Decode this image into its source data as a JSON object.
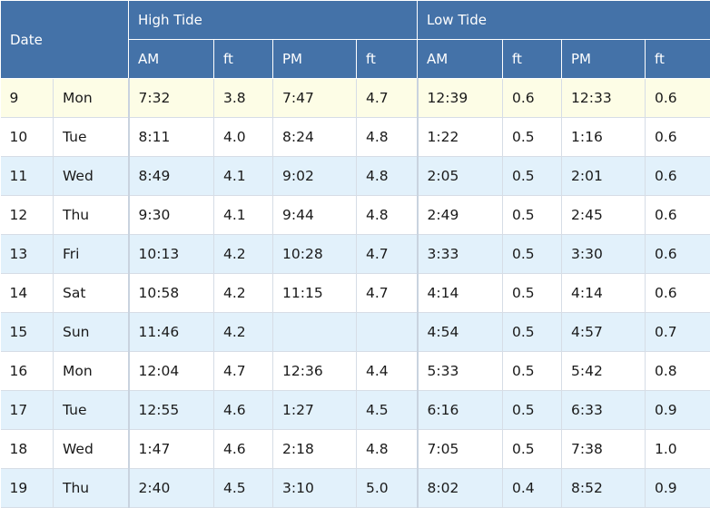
{
  "headers": {
    "date": "Date",
    "high_tide": "High Tide",
    "low_tide": "Low Tide",
    "sub": [
      "AM",
      "ft",
      "PM",
      "ft",
      "AM",
      "ft",
      "PM",
      "ft"
    ]
  },
  "rows": [
    {
      "day": "9",
      "weekday": "Mon",
      "h_am": "7:32",
      "h_am_ft": "3.8",
      "h_pm": "7:47",
      "h_pm_ft": "4.7",
      "l_am": "12:39",
      "l_am_ft": "0.6",
      "l_pm": "12:33",
      "l_pm_ft": "0.6"
    },
    {
      "day": "10",
      "weekday": "Tue",
      "h_am": "8:11",
      "h_am_ft": "4.0",
      "h_pm": "8:24",
      "h_pm_ft": "4.8",
      "l_am": "1:22",
      "l_am_ft": "0.5",
      "l_pm": "1:16",
      "l_pm_ft": "0.6"
    },
    {
      "day": "11",
      "weekday": "Wed",
      "h_am": "8:49",
      "h_am_ft": "4.1",
      "h_pm": "9:02",
      "h_pm_ft": "4.8",
      "l_am": "2:05",
      "l_am_ft": "0.5",
      "l_pm": "2:01",
      "l_pm_ft": "0.6"
    },
    {
      "day": "12",
      "weekday": "Thu",
      "h_am": "9:30",
      "h_am_ft": "4.1",
      "h_pm": "9:44",
      "h_pm_ft": "4.8",
      "l_am": "2:49",
      "l_am_ft": "0.5",
      "l_pm": "2:45",
      "l_pm_ft": "0.6"
    },
    {
      "day": "13",
      "weekday": "Fri",
      "h_am": "10:13",
      "h_am_ft": "4.2",
      "h_pm": "10:28",
      "h_pm_ft": "4.7",
      "l_am": "3:33",
      "l_am_ft": "0.5",
      "l_pm": "3:30",
      "l_pm_ft": "0.6"
    },
    {
      "day": "14",
      "weekday": "Sat",
      "h_am": "10:58",
      "h_am_ft": "4.2",
      "h_pm": "11:15",
      "h_pm_ft": "4.7",
      "l_am": "4:14",
      "l_am_ft": "0.5",
      "l_pm": "4:14",
      "l_pm_ft": "0.6"
    },
    {
      "day": "15",
      "weekday": "Sun",
      "h_am": "11:46",
      "h_am_ft": "4.2",
      "h_pm": "",
      "h_pm_ft": "",
      "l_am": "4:54",
      "l_am_ft": "0.5",
      "l_pm": "4:57",
      "l_pm_ft": "0.7"
    },
    {
      "day": "16",
      "weekday": "Mon",
      "h_am": "12:04",
      "h_am_ft": "4.7",
      "h_pm": "12:36",
      "h_pm_ft": "4.4",
      "l_am": "5:33",
      "l_am_ft": "0.5",
      "l_pm": "5:42",
      "l_pm_ft": "0.8"
    },
    {
      "day": "17",
      "weekday": "Tue",
      "h_am": "12:55",
      "h_am_ft": "4.6",
      "h_pm": "1:27",
      "h_pm_ft": "4.5",
      "l_am": "6:16",
      "l_am_ft": "0.5",
      "l_pm": "6:33",
      "l_pm_ft": "0.9"
    },
    {
      "day": "18",
      "weekday": "Wed",
      "h_am": "1:47",
      "h_am_ft": "4.6",
      "h_pm": "2:18",
      "h_pm_ft": "4.8",
      "l_am": "7:05",
      "l_am_ft": "0.5",
      "l_pm": "7:38",
      "l_pm_ft": "1.0"
    },
    {
      "day": "19",
      "weekday": "Thu",
      "h_am": "2:40",
      "h_am_ft": "4.5",
      "h_pm": "3:10",
      "h_pm_ft": "5.0",
      "l_am": "8:02",
      "l_am_ft": "0.4",
      "l_pm": "8:52",
      "l_pm_ft": "0.9"
    }
  ],
  "colors": {
    "header_bg": "#4472a8",
    "highlight_row": "#fdfde6",
    "alt_row": "#e2f1fb"
  }
}
